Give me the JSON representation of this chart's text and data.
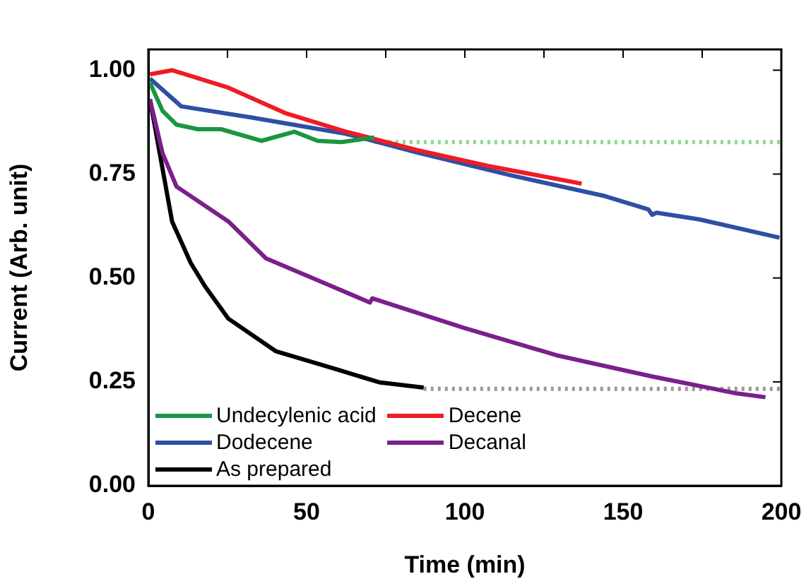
{
  "chart_data": {
    "type": "line",
    "xlabel": "Time (min)",
    "ylabel": "Current (Arb. unit)",
    "xlim": [
      0,
      200
    ],
    "xticks": [
      0,
      {
        "value": 25,
        "label": null
      },
      50,
      {
        "value": 75,
        "label": null
      },
      100,
      {
        "value": 125,
        "label": null
      },
      150,
      {
        "value": 175,
        "label": null
      },
      200
    ],
    "ylim": [
      0,
      1.05
    ],
    "yticks": [
      {
        "value": 0,
        "label": "0.00"
      },
      {
        "value": 0.25,
        "label": "0.25"
      },
      {
        "value": 0.5,
        "label": "0.50"
      },
      {
        "value": 0.75,
        "label": "0.75"
      },
      {
        "value": 1,
        "label": "1.00"
      }
    ],
    "grid": false,
    "legend": "bottom left",
    "marker": "none",
    "line_style": "solid",
    "series": [
      {
        "name": "Undecylenic acid",
        "color": "#1a9641",
        "x": [
          0.5,
          4.5,
          8.9,
          15.6,
          23,
          35.7,
          46.1,
          53.5,
          61,
          71.4
        ],
        "values": [
          0.97,
          0.902,
          0.869,
          0.858,
          0.858,
          0.83,
          0.852,
          0.83,
          0.827,
          0.838
        ]
      },
      {
        "name": "Decene",
        "color": "#ee1c25",
        "x": [
          0.5,
          7.5,
          25.3,
          43.2,
          62.5,
          84.8,
          107,
          136.9
        ],
        "values": [
          0.99,
          1.0,
          0.958,
          0.897,
          0.852,
          0.808,
          0.77,
          0.727
        ]
      },
      {
        "name": "Dodecene",
        "color": "#2e4fa3",
        "x": [
          0.5,
          10.4,
          32.7,
          62.5,
          84.8,
          114.6,
          144.3,
          158,
          159.2,
          160.5,
          174.1,
          199.4
        ],
        "values": [
          0.98,
          0.913,
          0.886,
          0.847,
          0.802,
          0.747,
          0.697,
          0.665,
          0.652,
          0.657,
          0.641,
          0.597
        ]
      },
      {
        "name": "Decanal",
        "color": "#7b1f8c",
        "x": [
          0.5,
          4.5,
          8.9,
          25.3,
          37.2,
          58,
          70,
          70.8,
          99.7,
          129.5,
          159.2,
          186,
          195
        ],
        "values": [
          0.93,
          0.8,
          0.72,
          0.636,
          0.547,
          0.48,
          0.441,
          0.451,
          0.38,
          0.313,
          0.263,
          0.222,
          0.213
        ]
      },
      {
        "name": "As prepared",
        "color": "#000000",
        "x": [
          0.5,
          7.5,
          13.4,
          17.9,
          25.3,
          40.2,
          59.5,
          72.9,
          87
        ],
        "values": [
          0.93,
          0.636,
          0.536,
          0.48,
          0.402,
          0.324,
          0.28,
          0.249,
          0.236
        ]
      },
      {
        "color": "#8ed88e",
        "line_style": "dotted",
        "x": [
          71.4,
          200
        ],
        "values": [
          0.827,
          0.827
        ]
      },
      {
        "color": "#999999",
        "line_style": "dotted",
        "x": [
          87,
          200
        ],
        "values": [
          0.233,
          0.233
        ]
      }
    ]
  }
}
